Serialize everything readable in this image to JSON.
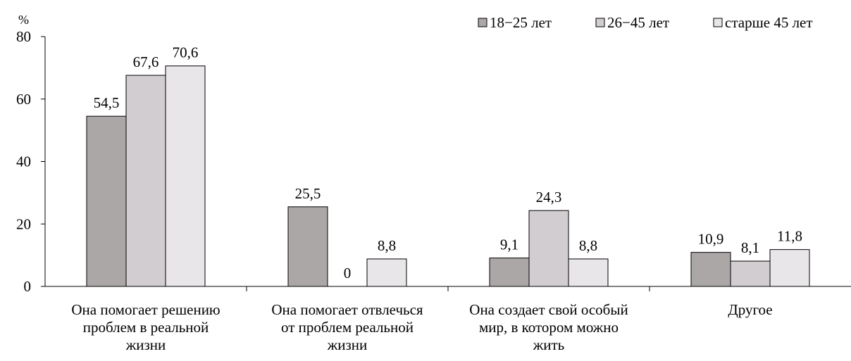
{
  "chart_data": {
    "type": "bar",
    "title": "",
    "xlabel": "",
    "ylabel": "%",
    "ylim": [
      0,
      80
    ],
    "yticks": [
      0,
      20,
      40,
      60,
      80
    ],
    "grid": false,
    "legend_position": "top-right",
    "categories": [
      [
        "Она помогает решению",
        "проблем в реальной",
        "жизни"
      ],
      [
        "Она помогает отвлечься",
        "от проблем реальной",
        "жизни"
      ],
      [
        "Она создает свой особый",
        "мир, в котором можно",
        "жить"
      ],
      [
        "Другое"
      ]
    ],
    "series": [
      {
        "name": "18−25 лет",
        "color": "#aca7a7",
        "values": [
          54.5,
          25.5,
          9.1,
          10.9
        ],
        "labels": [
          "54,5",
          "25,5",
          "9,1",
          "10,9"
        ]
      },
      {
        "name": "26−45 лет",
        "color": "#d1cdd1",
        "values": [
          67.6,
          0,
          24.3,
          8.1
        ],
        "labels": [
          "67,6",
          "0",
          "24,3",
          "8,1"
        ]
      },
      {
        "name": "старше 45 лет",
        "color": "#e8e6e8",
        "values": [
          70.6,
          8.8,
          8.8,
          11.8
        ],
        "labels": [
          "70,6",
          "8,8",
          "8,8",
          "11,8"
        ]
      }
    ]
  }
}
